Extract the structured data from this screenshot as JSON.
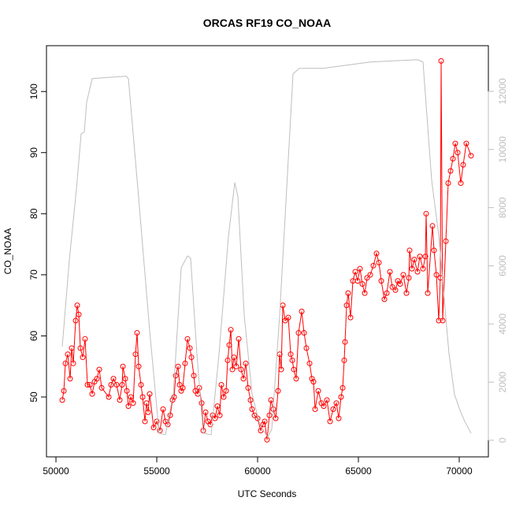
{
  "chart_data": {
    "type": "line",
    "title": "ORCAS RF19 CO_NOAA",
    "xlabel": "UTC Seconds",
    "ylabel": "CO_NOAA",
    "xlim": [
      49530,
      71445
    ],
    "ylim": [
      40.2,
      107.5
    ],
    "y2lim": [
      -570,
      13570
    ],
    "xticks": [
      50000,
      55000,
      60000,
      65000,
      70000
    ],
    "yticks": [
      50,
      60,
      70,
      80,
      90,
      100
    ],
    "y2ticks": [
      0,
      2000,
      4000,
      6000,
      8000,
      10000,
      12000
    ],
    "series": [
      {
        "color": "#ff0000",
        "markers": true,
        "x": [
          50313,
          50391,
          50469,
          50586,
          50703,
          50781,
          50859,
          50977,
          51055,
          51133,
          51211,
          51328,
          51445,
          51563,
          51680,
          51797,
          51914,
          52031,
          52148,
          52266,
          52617,
          52734,
          52852,
          53008,
          53164,
          53281,
          53320,
          53438,
          53516,
          53594,
          53711,
          53828,
          53945,
          54023,
          54102,
          54219,
          54297,
          54414,
          54492,
          54570,
          54648,
          54844,
          55000,
          55156,
          55313,
          55430,
          55547,
          55664,
          55781,
          55859,
          55938,
          56055,
          56133,
          56211,
          56289,
          56406,
          56523,
          56641,
          56719,
          56836,
          56914,
          57031,
          57109,
          57227,
          57305,
          57422,
          57539,
          57656,
          57773,
          57891,
          58008,
          58125,
          58203,
          58320,
          58438,
          58516,
          58594,
          58672,
          58750,
          58828,
          58945,
          59063,
          59180,
          59297,
          59414,
          59531,
          59648,
          59727,
          59844,
          60000,
          60156,
          60273,
          60352,
          60469,
          60586,
          60664,
          60781,
          60898,
          61016,
          61094,
          61172,
          61250,
          61367,
          61523,
          61641,
          61719,
          61797,
          61914,
          62031,
          62188,
          62305,
          62422,
          62578,
          62695,
          62773,
          62852,
          63008,
          63164,
          63281,
          63438,
          63594,
          63750,
          63906,
          64023,
          64141,
          64219,
          64297,
          64336,
          64414,
          64492,
          64609,
          64727,
          64844,
          64961,
          65078,
          65195,
          65313,
          65430,
          65586,
          65742,
          65898,
          66016,
          66133,
          66289,
          66406,
          66563,
          66680,
          66836,
          66953,
          67070,
          67227,
          67383,
          67500,
          67539,
          67656,
          67773,
          67930,
          68047,
          68203,
          68320,
          68359,
          68438,
          68672,
          68750,
          68867,
          68984,
          69063,
          69102,
          69180,
          69336,
          69453,
          69570,
          69688,
          69805,
          69922,
          70078,
          70195,
          70352,
          70586
        ],
        "values": [
          49.5,
          51,
          55.5,
          57,
          53,
          58,
          55.5,
          62.5,
          65,
          63.5,
          58,
          56.5,
          59.5,
          52,
          52,
          50.5,
          52.5,
          53,
          54.5,
          51.5,
          50,
          52,
          53,
          52,
          49.5,
          52,
          55,
          53,
          51,
          48.5,
          50,
          49,
          57,
          60.5,
          55,
          52,
          50,
          46,
          49,
          47.5,
          50.5,
          45,
          46,
          44.5,
          48,
          46,
          45.5,
          47,
          49.5,
          50,
          53.5,
          55,
          52,
          51,
          51.5,
          55.5,
          59.5,
          58,
          56.5,
          53.5,
          51,
          50.5,
          51.5,
          49,
          44.5,
          47.5,
          46,
          45.5,
          47,
          46.5,
          48.5,
          47,
          52,
          50,
          51,
          56,
          58.5,
          61,
          54.5,
          56.5,
          55,
          59.5,
          54.5,
          53,
          55.5,
          51.5,
          49.5,
          48,
          47,
          46.5,
          44.5,
          45.5,
          46,
          43,
          47,
          49.5,
          48,
          46.5,
          51,
          57,
          54.5,
          65,
          62.5,
          63,
          57,
          56,
          54.5,
          53,
          60.5,
          64,
          60.5,
          58,
          55.5,
          53,
          52.5,
          48,
          51,
          49,
          48.5,
          49.5,
          46,
          48,
          49,
          46.5,
          50,
          51.5,
          56,
          59,
          65,
          67,
          63,
          69,
          70.5,
          69,
          71,
          68.5,
          67,
          69.5,
          70,
          71.5,
          73.5,
          72,
          69,
          66,
          67,
          70.5,
          68,
          67.5,
          69,
          68.5,
          70,
          67,
          69.5,
          74,
          71,
          72.5,
          70.5,
          73,
          71,
          73,
          80,
          67,
          78,
          74,
          70,
          62.5,
          69.5,
          105,
          62.5,
          75.5,
          85,
          87,
          89,
          91.5,
          90,
          85,
          88,
          91.5,
          89.5
        ]
      },
      {
        "color": "#bebebe",
        "axis": "y2",
        "markers": false,
        "x": [
          50312,
          50664,
          51016,
          51250,
          51406,
          51523,
          51797,
          53477,
          53594,
          54063,
          54648,
          55117,
          55430,
          55820,
          56211,
          56523,
          56680,
          56992,
          57305,
          57695,
          58086,
          58555,
          58867,
          59023,
          59336,
          59727,
          60117,
          60508,
          60703,
          61094,
          61758,
          62070,
          63242,
          65586,
          67930,
          68203,
          68633,
          68984,
          69219,
          69492,
          69766,
          70039,
          70273,
          70586
        ],
        "values": [
          3225,
          6206,
          8645,
          10542,
          10596,
          11626,
          12439,
          12520,
          12439,
          8645,
          3767,
          244,
          190,
          1599,
          5935,
          6341,
          6260,
          2954,
          244,
          190,
          2954,
          7019,
          8862,
          8374,
          4309,
          1599,
          515,
          108,
          379,
          4309,
          12602,
          12791,
          12791,
          13008,
          13089,
          13008,
          8943,
          7046,
          5149,
          2981,
          1572,
          1030,
          650,
          244
        ]
      }
    ]
  }
}
